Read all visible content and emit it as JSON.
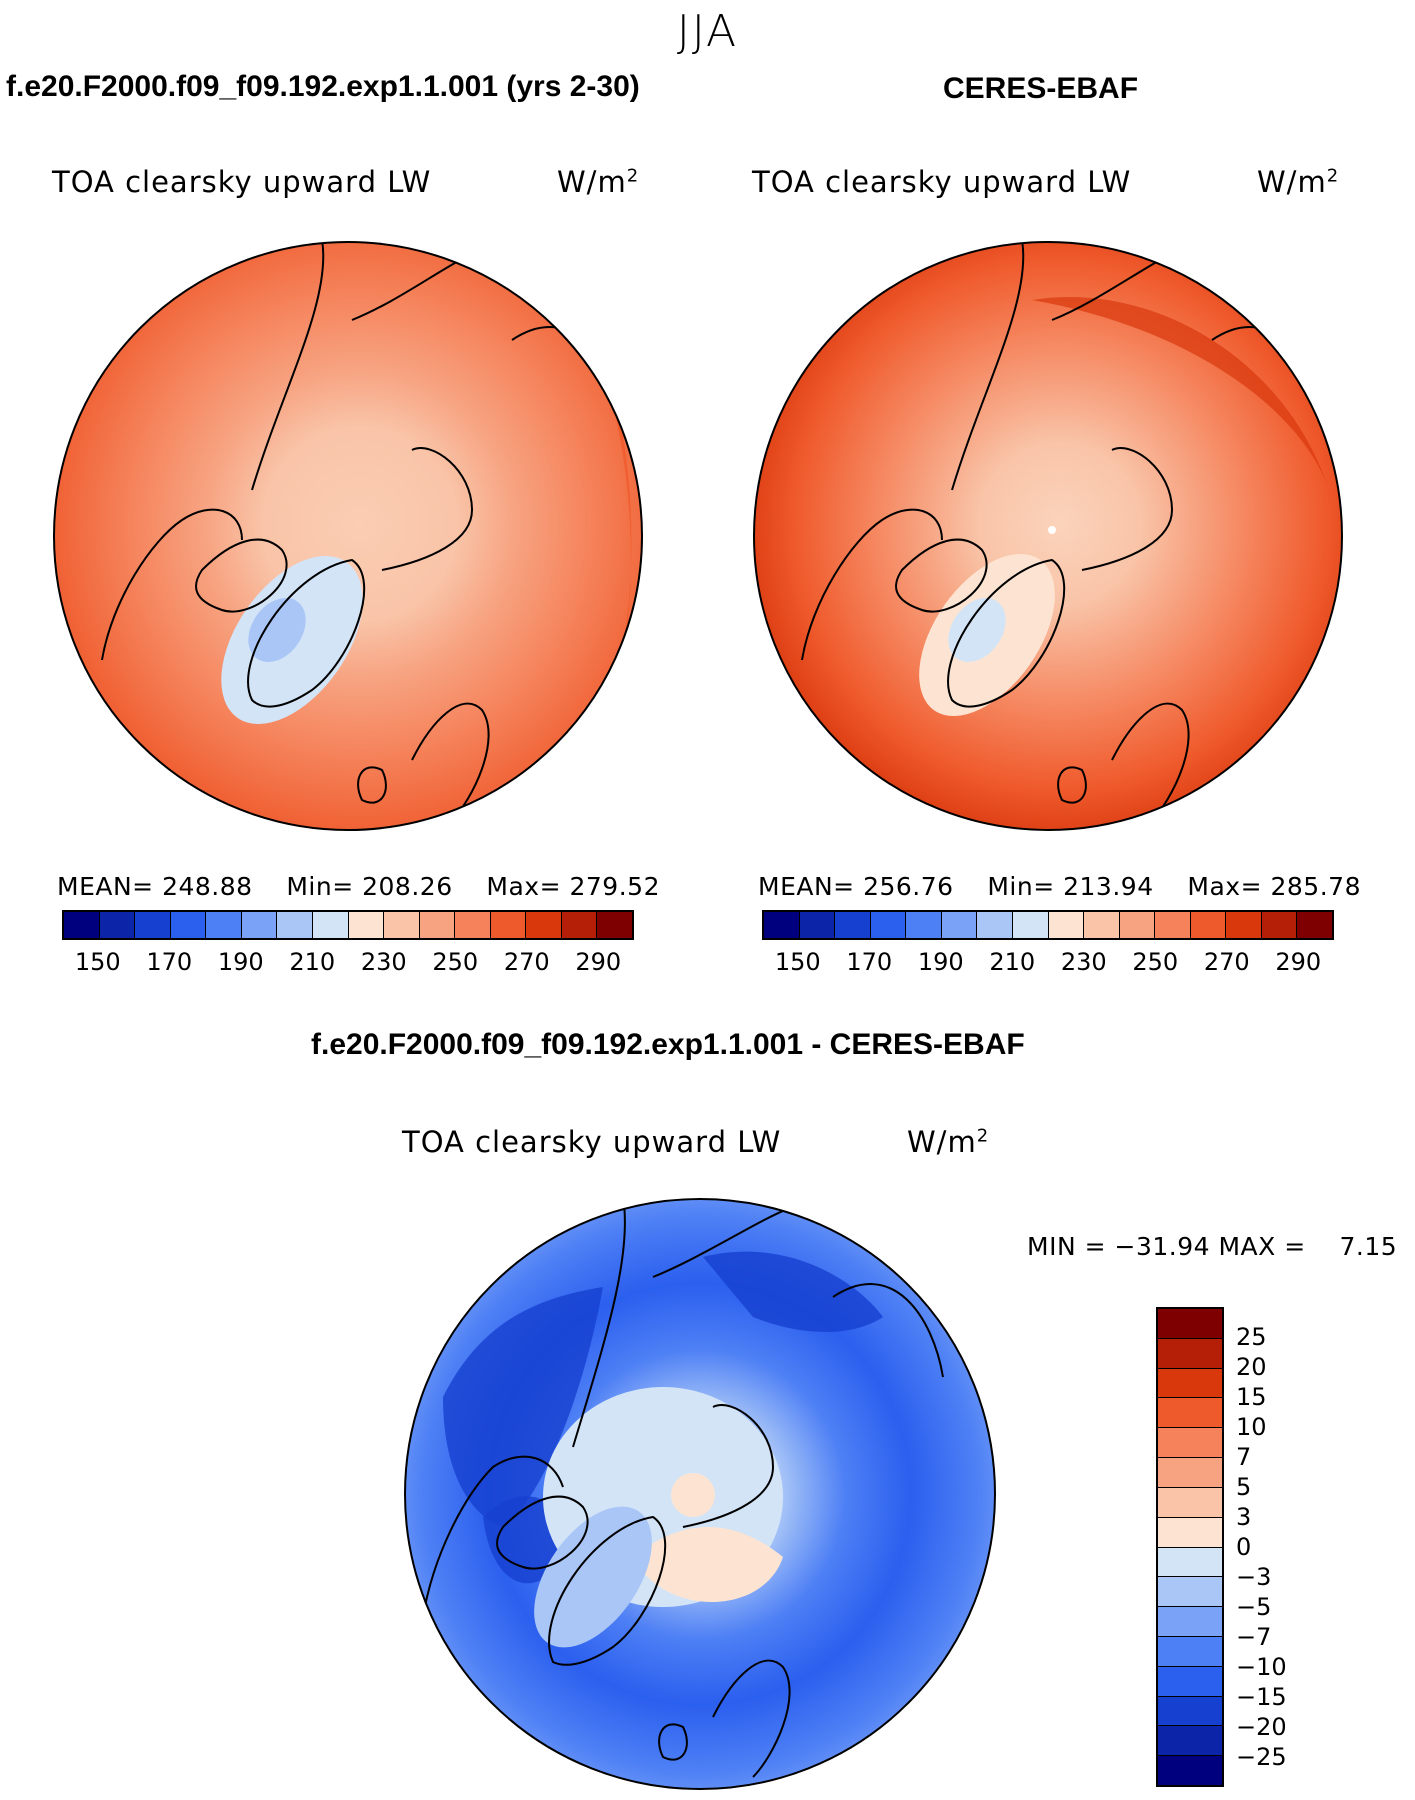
{
  "figure": {
    "season": "JJA",
    "variable": "TOA clearsky upward LW",
    "units_base": "W/m",
    "units_exp": "2"
  },
  "panels": [
    {
      "title": "f.e20.F2000.f09_f09.192.exp1.1.001 (yrs 2-30)",
      "mean_label": "MEAN=",
      "mean": "248.88",
      "min_label": "Min=",
      "min": "208.26",
      "max_label": "Max=",
      "max": "279.52"
    },
    {
      "title": "CERES-EBAF",
      "mean_label": "MEAN=",
      "mean": "256.76",
      "min_label": "Min=",
      "min": "213.94",
      "max_label": "Max=",
      "max": "285.78"
    }
  ],
  "diff_panel": {
    "title": "f.e20.F2000.f09_f09.192.exp1.1.001 - CERES-EBAF",
    "min_label": "MIN =",
    "min": "−31.94",
    "max_label": "MAX =",
    "max": "7.15"
  },
  "colorbar_main": {
    "colors": [
      "#00007f",
      "#0b24a8",
      "#1640d0",
      "#2b5fee",
      "#4d7ff5",
      "#7aa3f7",
      "#a9c6f7",
      "#d3e4f7",
      "#fde4d2",
      "#f9c4a8",
      "#f7a381",
      "#f5825a",
      "#ef5a2c",
      "#d9380d",
      "#b51e07",
      "#7f0000"
    ],
    "ticks": [
      "150",
      "170",
      "190",
      "210",
      "230",
      "250",
      "270",
      "290"
    ]
  },
  "colorbar_diff": {
    "colors": [
      "#7f0000",
      "#b51e07",
      "#d9380d",
      "#ef5a2c",
      "#f5825a",
      "#f7a381",
      "#f9c4a8",
      "#fde4d2",
      "#d3e4f7",
      "#a9c6f7",
      "#7aa3f7",
      "#4d7ff5",
      "#2b5fee",
      "#1640d0",
      "#0b24a8",
      "#00007f"
    ],
    "ticks": [
      "25",
      "20",
      "15",
      "10",
      "7",
      "5",
      "3",
      "0",
      "−3",
      "−5",
      "−7",
      "−10",
      "−15",
      "−20",
      "−25"
    ]
  }
}
